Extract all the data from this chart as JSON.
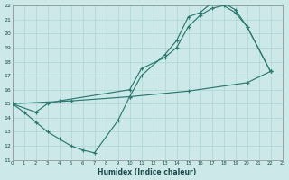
{
  "xlabel": "Humidex (Indice chaleur)",
  "bg_color": "#cce8e8",
  "grid_color": "#aad4d4",
  "line_color": "#2a7a70",
  "xlim": [
    0,
    23
  ],
  "ylim": [
    11,
    22
  ],
  "xticks": [
    0,
    1,
    2,
    3,
    4,
    5,
    6,
    7,
    8,
    9,
    10,
    11,
    12,
    13,
    14,
    15,
    16,
    17,
    18,
    19,
    20,
    21,
    22,
    23
  ],
  "yticks": [
    11,
    12,
    13,
    14,
    15,
    16,
    17,
    18,
    19,
    20,
    21,
    22
  ],
  "line1_x": [
    0,
    1,
    2,
    3,
    4,
    5,
    6,
    7,
    9,
    10,
    11,
    13,
    14,
    15,
    16,
    17,
    18,
    19,
    20,
    22
  ],
  "line1_y": [
    15.0,
    14.4,
    13.7,
    13.0,
    12.5,
    12.0,
    11.7,
    11.5,
    13.8,
    15.5,
    17.0,
    18.5,
    19.5,
    21.2,
    21.5,
    22.2,
    22.2,
    21.7,
    20.5,
    17.3
  ],
  "line2_x": [
    0,
    2,
    3,
    4,
    10,
    11,
    13,
    14,
    15,
    16,
    17,
    18,
    19,
    20,
    22
  ],
  "line2_y": [
    15.0,
    14.4,
    15.0,
    15.2,
    16.0,
    17.5,
    18.3,
    19.0,
    20.5,
    21.3,
    21.8,
    22.0,
    21.5,
    20.5,
    17.3
  ],
  "line3_x": [
    0,
    5,
    10,
    15,
    20,
    22
  ],
  "line3_y": [
    15.0,
    15.2,
    15.5,
    15.9,
    16.5,
    17.3
  ]
}
